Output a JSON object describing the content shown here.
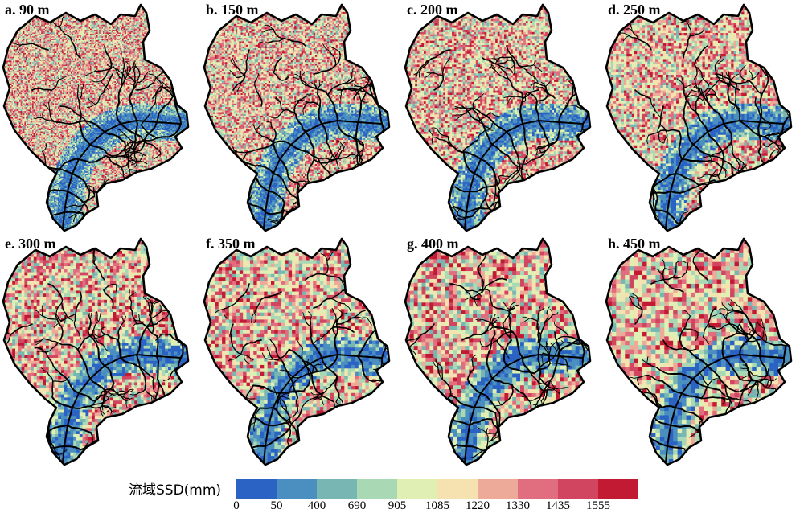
{
  "figure": {
    "panels": [
      {
        "label": "a. 90 m",
        "resolution_m": 90
      },
      {
        "label": "b. 150 m",
        "resolution_m": 150
      },
      {
        "label": "c. 200 m",
        "resolution_m": 200
      },
      {
        "label": "d. 250 m",
        "resolution_m": 250
      },
      {
        "label": "e. 300 m",
        "resolution_m": 300
      },
      {
        "label": "f. 350 m",
        "resolution_m": 350
      },
      {
        "label": "g. 400 m",
        "resolution_m": 400
      },
      {
        "label": "h. 450 m",
        "resolution_m": 450
      }
    ],
    "legend": {
      "title": "流域SSD(mm)",
      "ticks": [
        "0",
        "50",
        "400",
        "690",
        "905",
        "1085",
        "1220",
        "1330",
        "1435",
        "1555"
      ],
      "colors": [
        "#2b63c4",
        "#4a8fbf",
        "#77b6b3",
        "#a9d8b4",
        "#e0f0b4",
        "#f6e2b0",
        "#eeaa99",
        "#e06e7f",
        "#d14560",
        "#c31a33"
      ]
    },
    "colors": {
      "boundary": "#000000",
      "streams": "#000000",
      "valley": "#2b63c4"
    }
  }
}
